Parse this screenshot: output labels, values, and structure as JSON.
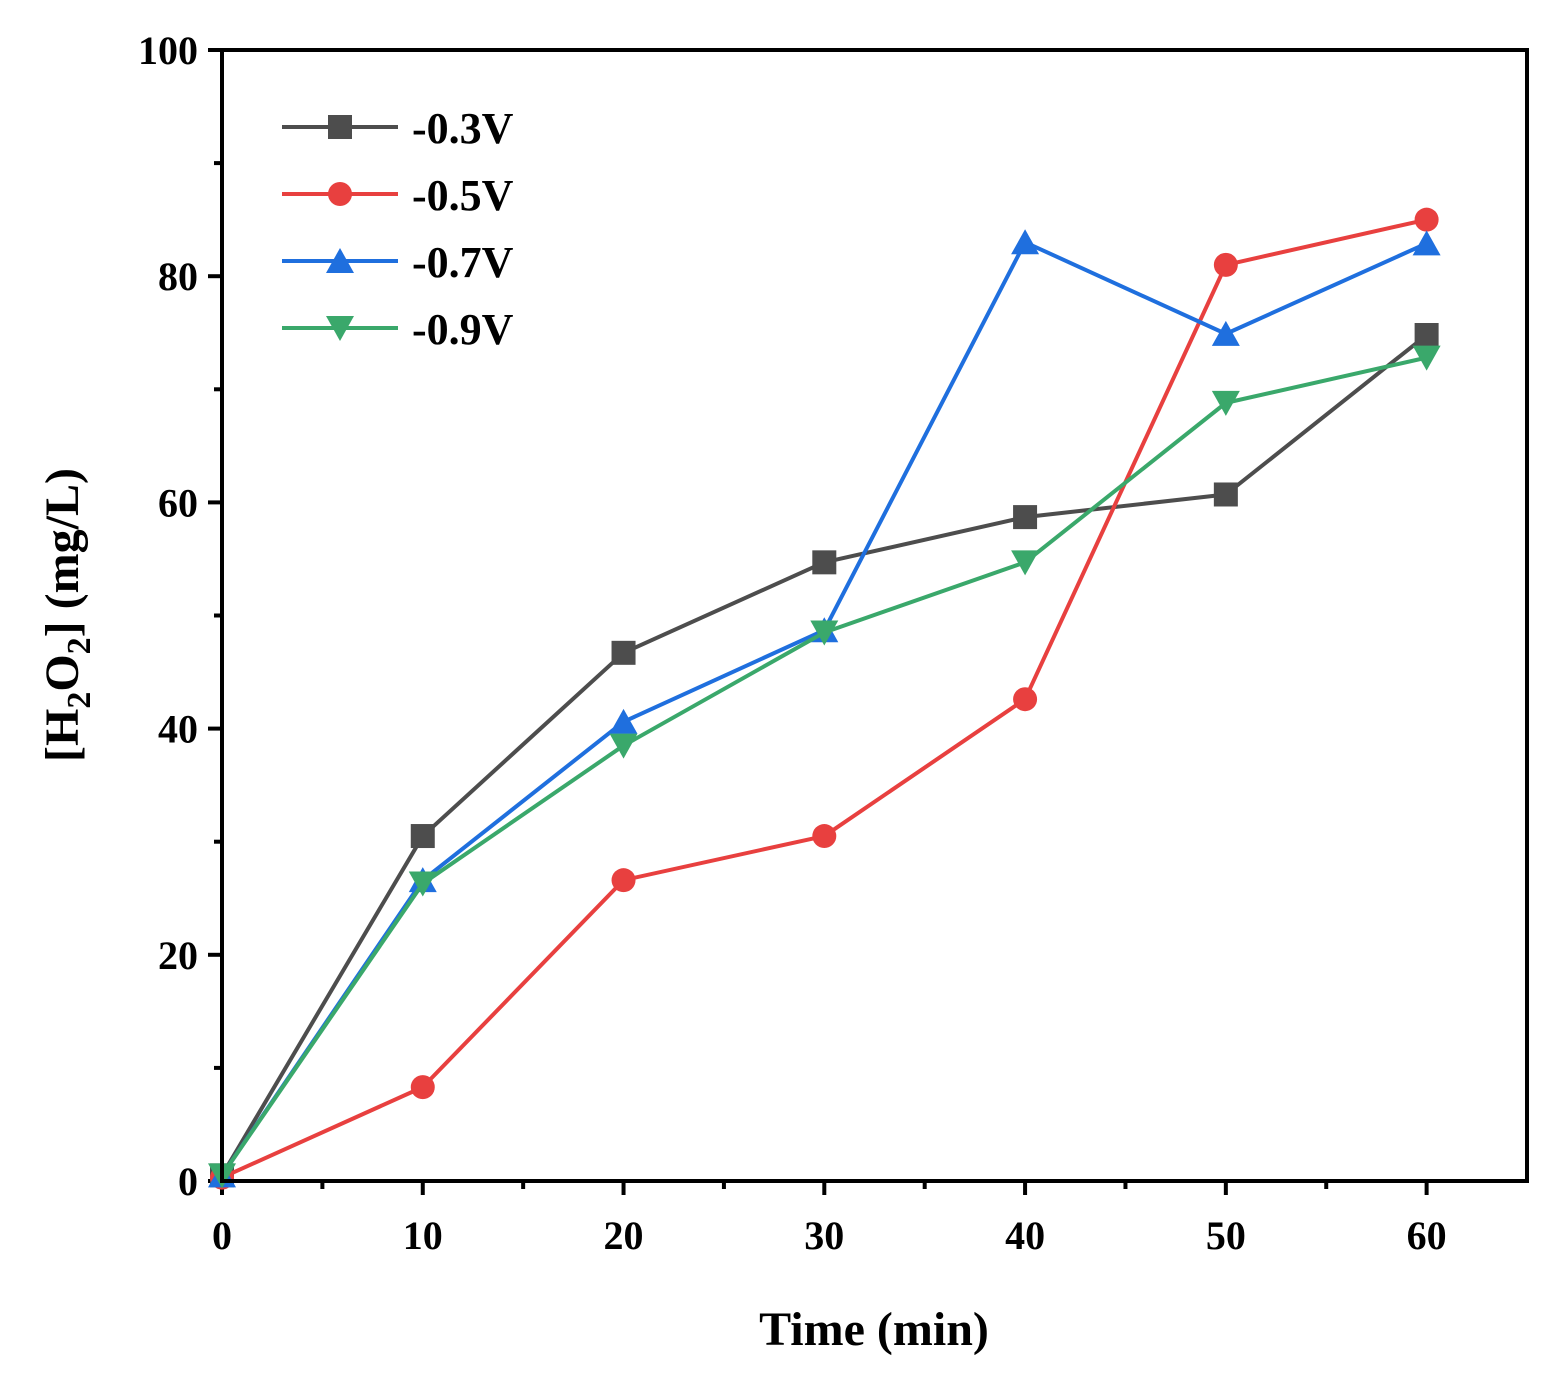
{
  "chart_data": {
    "type": "line",
    "title": "",
    "xlabel": "Time (min)",
    "ylabel_parts": [
      "[H",
      "2",
      "O",
      "2",
      "] (mg/L)"
    ],
    "xlim": [
      0,
      65
    ],
    "ylim": [
      0,
      100
    ],
    "x_ticks": [
      0,
      10,
      20,
      30,
      40,
      50,
      60
    ],
    "y_ticks": [
      0,
      20,
      40,
      60,
      80,
      100
    ],
    "x": [
      0,
      10,
      20,
      30,
      40,
      50,
      60
    ],
    "legend_position": "top-left",
    "series": [
      {
        "name": "-0.3V",
        "color": "#4d4d4d",
        "marker": "square",
        "values": [
          0.5,
          30.5,
          46.7,
          54.7,
          58.7,
          60.7,
          74.8
        ]
      },
      {
        "name": "-0.5V",
        "color": "#e8403f",
        "marker": "circle",
        "values": [
          0.3,
          8.3,
          26.6,
          30.5,
          42.6,
          81.0,
          85.0
        ]
      },
      {
        "name": "-0.7V",
        "color": "#1f6fde",
        "marker": "triangle-up",
        "values": [
          0.5,
          26.6,
          40.6,
          48.7,
          83.0,
          74.9,
          82.9
        ]
      },
      {
        "name": "-0.9V",
        "color": "#3aa86b",
        "marker": "triangle-down",
        "values": [
          0.5,
          26.3,
          38.5,
          48.5,
          54.7,
          68.8,
          72.8
        ]
      }
    ]
  }
}
